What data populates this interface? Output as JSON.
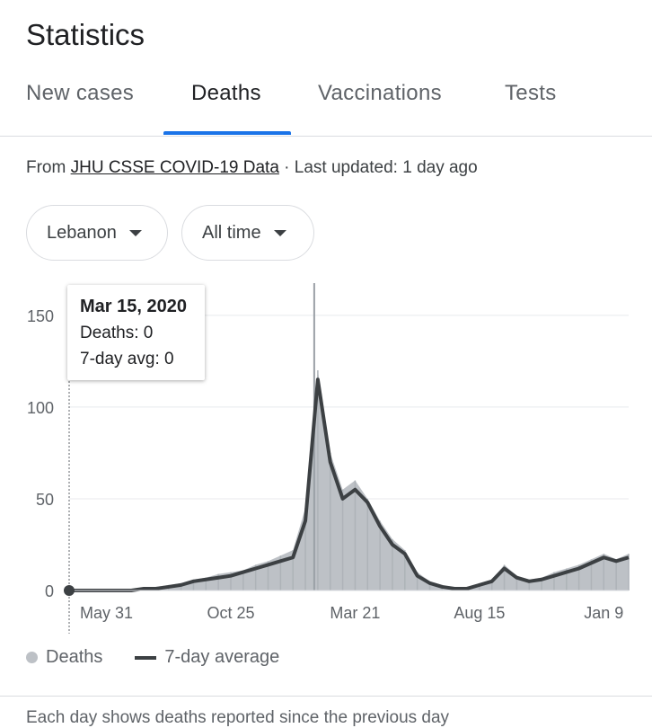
{
  "header": {
    "title": "Statistics"
  },
  "tabs": [
    {
      "label": "New cases",
      "active": false
    },
    {
      "label": "Deaths",
      "active": true
    },
    {
      "label": "Vaccinations",
      "active": false
    },
    {
      "label": "Tests",
      "active": false
    }
  ],
  "source": {
    "prefix": "From ",
    "link_text": "JHU CSSE COVID-19 Data",
    "suffix": " · Last updated: 1 day ago"
  },
  "filters": {
    "location": "Lebanon",
    "period": "All time"
  },
  "tooltip": {
    "date": "Mar 15, 2020",
    "deaths": "Deaths: 0",
    "avg": "7-day avg: 0"
  },
  "legend": {
    "deaths": "Deaths",
    "avg": "7-day average"
  },
  "footnote": "Each day shows deaths reported since the previous day",
  "colors": {
    "accent": "#1a73e8",
    "bars": "#bdc1c6",
    "avg_line": "#3c4043"
  },
  "chart_data": {
    "type": "area",
    "title": "Deaths",
    "xlabel": "",
    "ylabel": "",
    "ylim": [
      0,
      170
    ],
    "y_ticks": [
      0,
      50,
      100,
      150
    ],
    "x_tick_labels": [
      "May 31",
      "Oct 25",
      "Mar 21",
      "Aug 15",
      "Jan 9"
    ],
    "x_tick_index": [
      3,
      13,
      23,
      33,
      43
    ],
    "series": [
      {
        "name": "7-day average",
        "x": [
          0,
          1,
          2,
          3,
          4,
          5,
          6,
          7,
          8,
          9,
          10,
          11,
          12,
          13,
          14,
          15,
          16,
          17,
          18,
          19,
          20,
          21,
          22,
          23,
          24,
          25,
          26,
          27,
          28,
          29,
          30,
          31,
          32,
          33,
          34,
          35,
          36,
          37,
          38,
          39,
          40,
          41,
          42,
          43,
          44,
          45
        ],
        "values": [
          0,
          0,
          0,
          0,
          0,
          0,
          1,
          1,
          2,
          3,
          5,
          6,
          7,
          8,
          10,
          12,
          14,
          16,
          18,
          38,
          115,
          70,
          50,
          55,
          48,
          35,
          25,
          20,
          8,
          4,
          2,
          1,
          1,
          3,
          5,
          12,
          7,
          5,
          6,
          8,
          10,
          12,
          15,
          18,
          16,
          18
        ]
      },
      {
        "name": "Deaths",
        "x": [
          0,
          1,
          2,
          3,
          4,
          5,
          6,
          7,
          8,
          9,
          10,
          11,
          12,
          13,
          14,
          15,
          16,
          17,
          18,
          19,
          20,
          21,
          22,
          23,
          24,
          25,
          26,
          27,
          28,
          29,
          30,
          31,
          32,
          33,
          34,
          35,
          36,
          37,
          38,
          39,
          40,
          41,
          42,
          43,
          44,
          45
        ],
        "values": [
          0,
          0,
          0,
          0,
          0,
          0,
          1,
          2,
          3,
          4,
          6,
          7,
          9,
          10,
          11,
          14,
          16,
          19,
          22,
          45,
          120,
          75,
          55,
          60,
          50,
          38,
          28,
          22,
          10,
          5,
          3,
          1,
          2,
          4,
          6,
          14,
          8,
          6,
          7,
          10,
          12,
          14,
          17,
          20,
          17,
          20
        ]
      }
    ],
    "tooltip_point": {
      "date": "Mar 15, 2020",
      "deaths": 0,
      "avg": 0
    }
  }
}
